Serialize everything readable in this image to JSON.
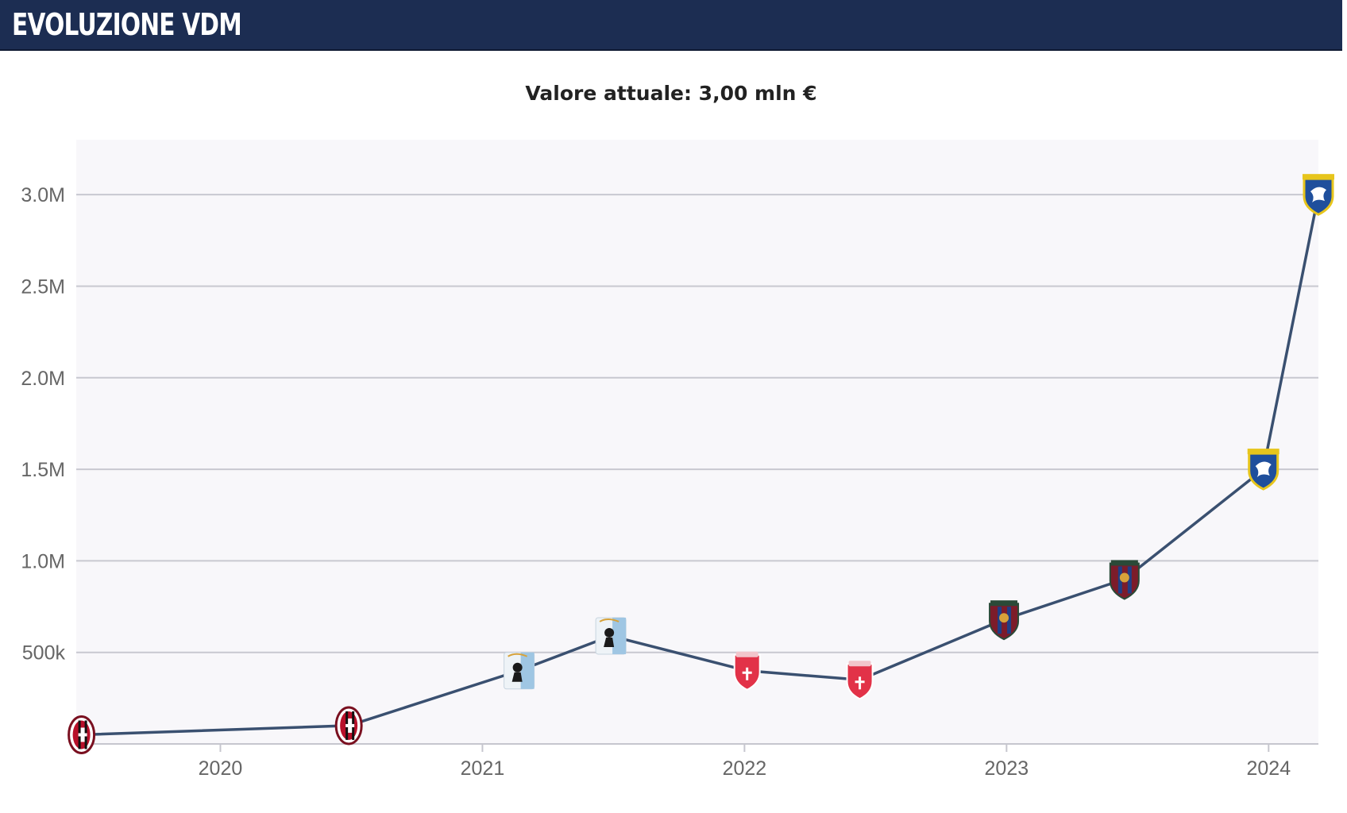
{
  "header": {
    "title": "EVOLUZIONE VDM"
  },
  "chart_data": {
    "type": "line",
    "title": "Valore attuale: 3,00 mln €",
    "xlabel": "",
    "ylabel": "",
    "xlim": [
      2019.45,
      2024.19
    ],
    "ylim": [
      0,
      3300000
    ],
    "y_ticks": [
      {
        "value": 500000,
        "label": "500k"
      },
      {
        "value": 1000000,
        "label": "1.0M"
      },
      {
        "value": 1500000,
        "label": "1.5M"
      },
      {
        "value": 2000000,
        "label": "2.0M"
      },
      {
        "value": 2500000,
        "label": "2.5M"
      },
      {
        "value": 3000000,
        "label": "3.0M"
      }
    ],
    "x_ticks": [
      {
        "value": 2020,
        "label": "2020"
      },
      {
        "value": 2021,
        "label": "2021"
      },
      {
        "value": 2022,
        "label": "2022"
      },
      {
        "value": 2023,
        "label": "2023"
      },
      {
        "value": 2024,
        "label": "2024"
      }
    ],
    "grid": true,
    "line_color": "#3a5070",
    "series": [
      {
        "points": [
          {
            "x": 2019.47,
            "y": 50000,
            "badge": "milan-crest"
          },
          {
            "x": 2020.49,
            "y": 100000,
            "badge": "milan-crest"
          },
          {
            "x": 2021.14,
            "y": 400000,
            "badge": "lightblue-crest"
          },
          {
            "x": 2021.49,
            "y": 590000,
            "badge": "lightblue-crest"
          },
          {
            "x": 2022.01,
            "y": 400000,
            "badge": "red-white-crest"
          },
          {
            "x": 2022.44,
            "y": 350000,
            "badge": "red-white-crest"
          },
          {
            "x": 2022.99,
            "y": 680000,
            "badge": "maroon-blue-crest"
          },
          {
            "x": 2023.45,
            "y": 900000,
            "badge": "maroon-blue-crest"
          },
          {
            "x": 2023.98,
            "y": 1500000,
            "badge": "blue-yellow-crest"
          },
          {
            "x": 2024.19,
            "y": 3000000,
            "badge": "blue-yellow-crest"
          }
        ]
      }
    ]
  }
}
